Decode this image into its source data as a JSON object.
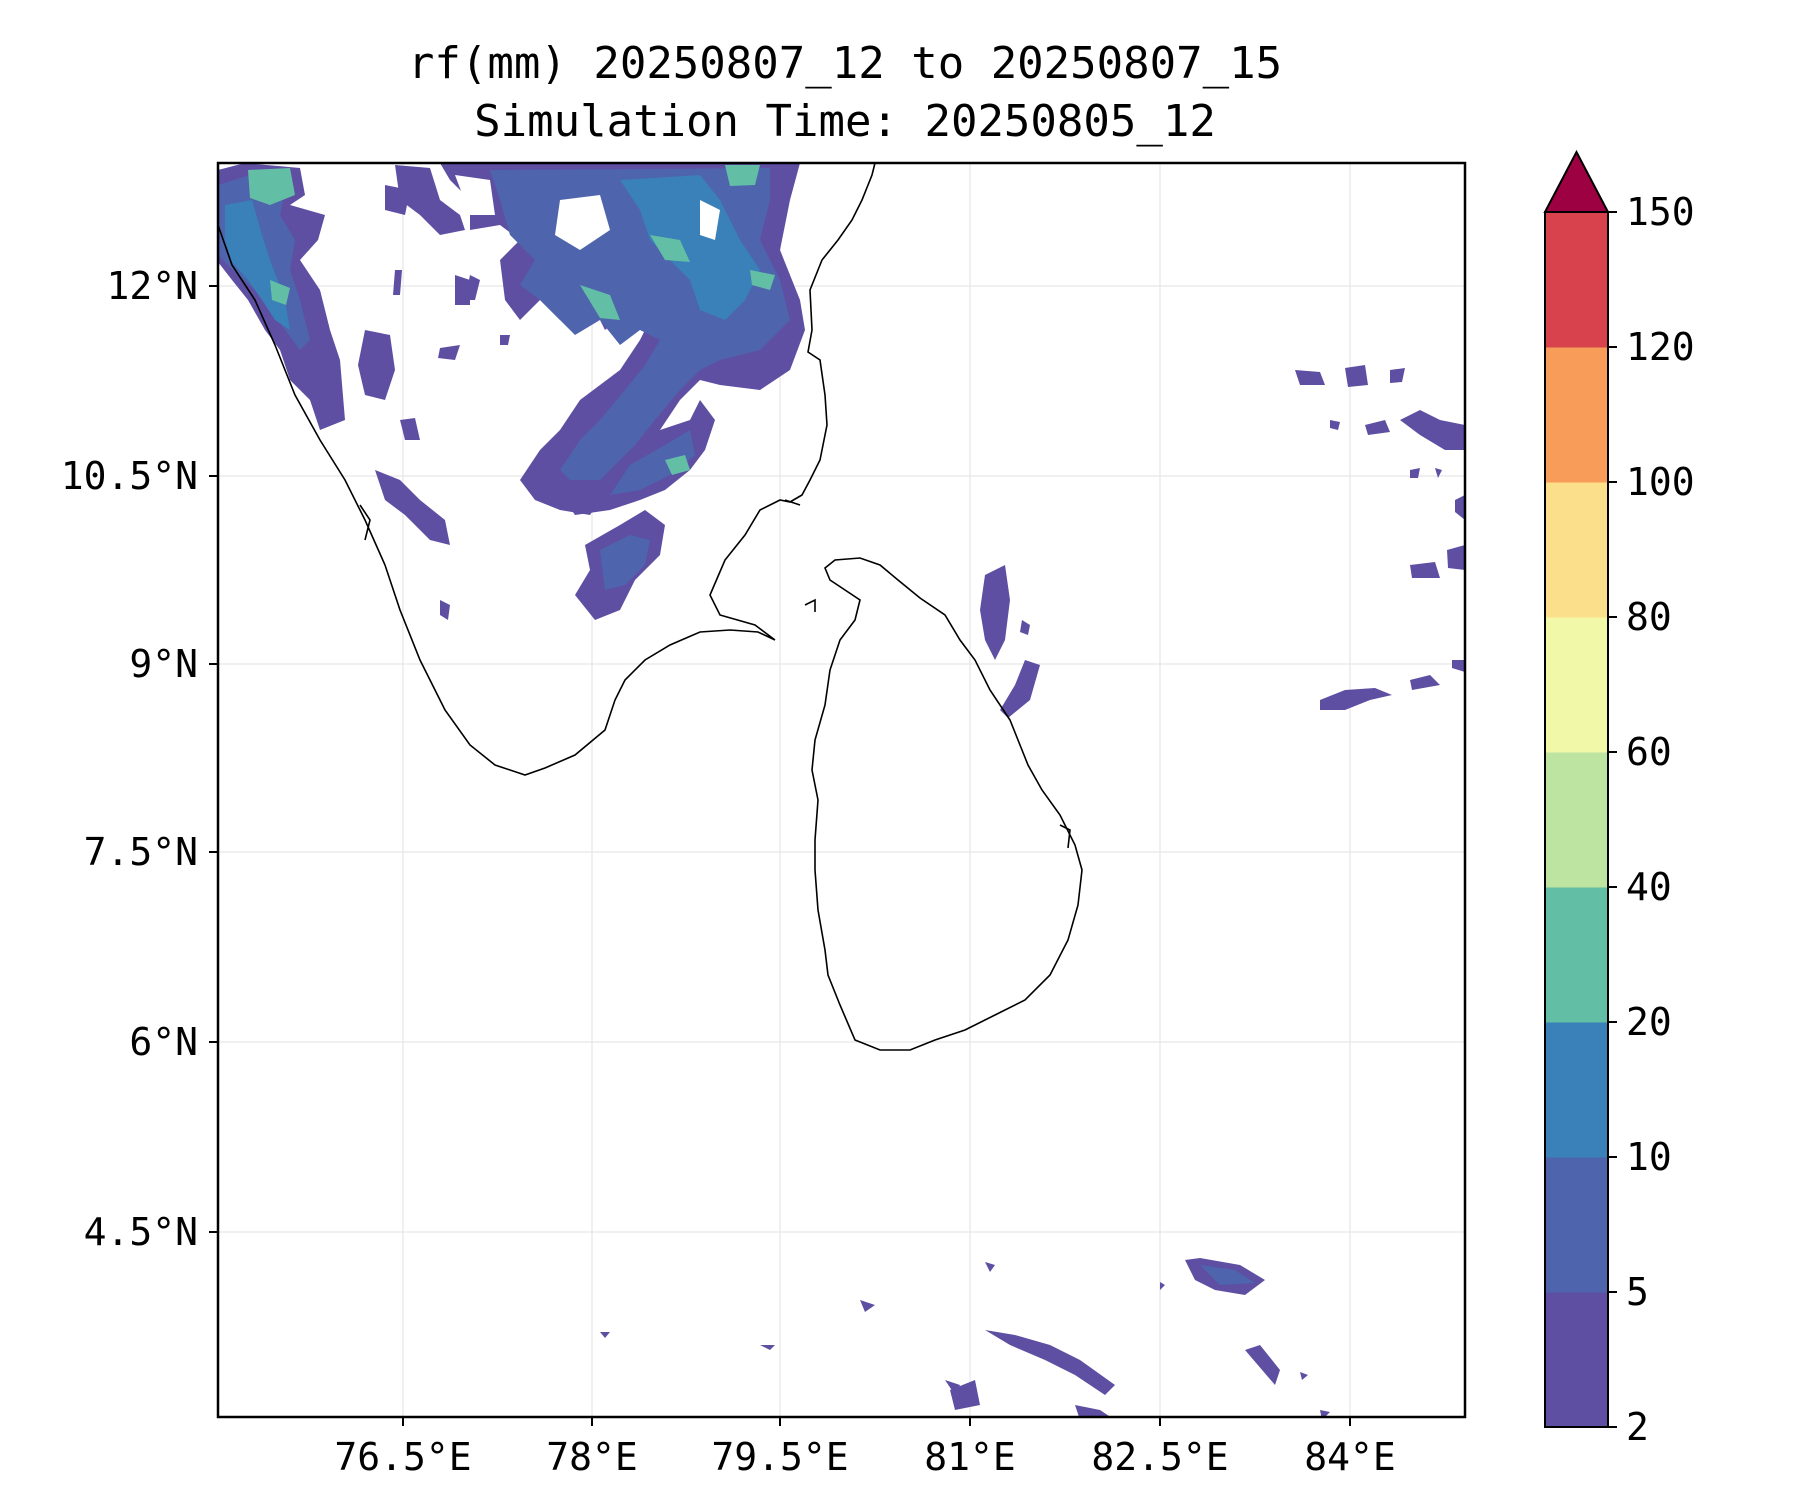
{
  "title": {
    "line1": "rf(mm) 20250807_12 to 20250807_15",
    "line2": "Simulation Time: 20250805_12"
  },
  "map": {
    "x_ticks": [
      "76.5°E",
      "78°E",
      "79.5°E",
      "81°E",
      "82.5°E",
      "84°E"
    ],
    "y_ticks": [
      "12°N",
      "10.5°N",
      "9°N",
      "7.5°N",
      "6°N",
      "4.5°N"
    ],
    "gridlines": true,
    "coastline_color": "#000000"
  },
  "colorbar": {
    "tick_labels": [
      "2",
      "5",
      "10",
      "20",
      "40",
      "60",
      "80",
      "100",
      "120",
      "150"
    ],
    "colors": [
      "#5e4fa2",
      "#4e64ad",
      "#3a80b9",
      "#63bea6",
      "#bde4a0",
      "#f1f9a9",
      "#fbdf8a",
      "#f89d59",
      "#d8424c"
    ],
    "extend_color": "#9e0142",
    "extend": "max"
  }
}
